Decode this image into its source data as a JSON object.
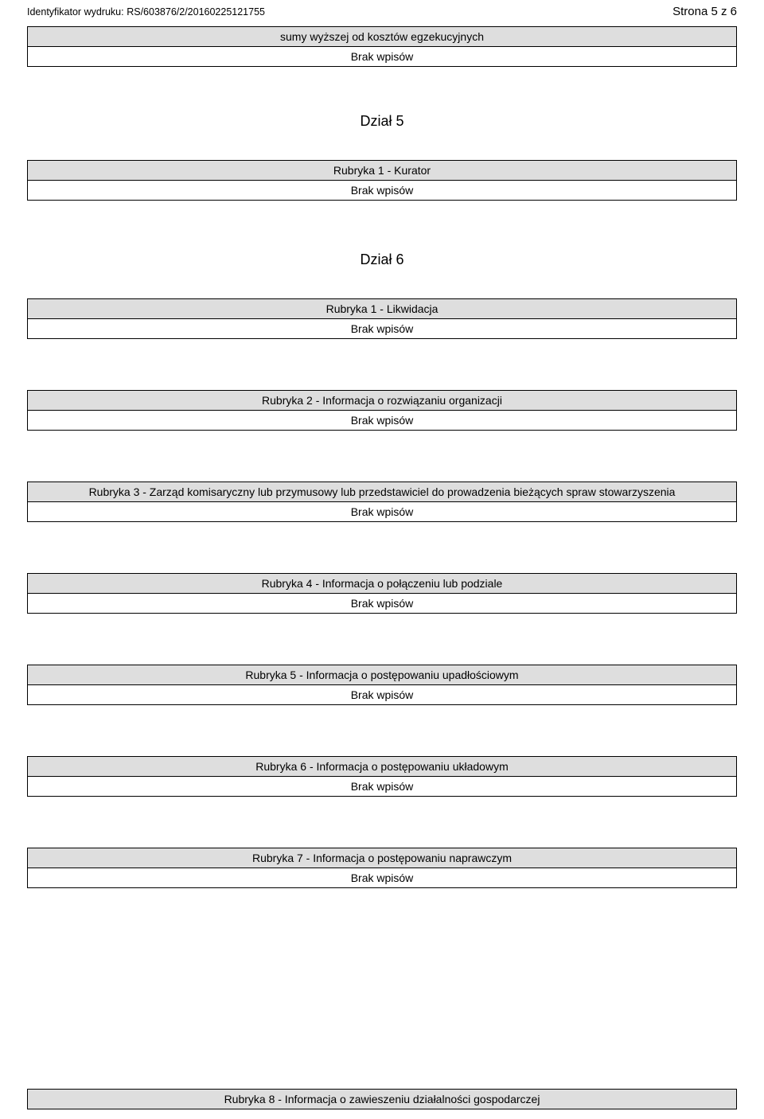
{
  "header": {
    "id_label": "Identyfikator wydruku:",
    "id_value": "RS/603876/2/20160225121755",
    "page_label": "Strona 5 z 6"
  },
  "colors": {
    "shaded_bg": "#dedede",
    "border": "#000000",
    "page_bg": "#ffffff",
    "text": "#000000"
  },
  "fonts": {
    "body_family": "Arial",
    "row_fontsize_pt": 10.5,
    "header_fontsize_pt": 9.5,
    "section_title_fontsize_pt": 13.5
  },
  "top_block": {
    "row1": "sumy wyższej od kosztów egzekucyjnych",
    "row2": "Brak wpisów"
  },
  "dzial5": {
    "title": "Dział 5",
    "r1": {
      "title": "Rubryka 1 - Kurator",
      "empty": "Brak wpisów"
    }
  },
  "dzial6": {
    "title": "Dział 6",
    "r1": {
      "title": "Rubryka 1 - Likwidacja",
      "empty": "Brak wpisów"
    },
    "r2": {
      "title": "Rubryka 2 - Informacja o rozwiązaniu organizacji",
      "empty": "Brak wpisów"
    },
    "r3": {
      "title": "Rubryka 3 - Zarząd komisaryczny lub przymusowy lub przedstawiciel do prowadzenia bieżących spraw stowarzyszenia",
      "empty": "Brak wpisów"
    },
    "r4": {
      "title": "Rubryka 4 - Informacja o połączeniu lub podziale",
      "empty": "Brak wpisów"
    },
    "r5": {
      "title": "Rubryka 5 - Informacja o postępowaniu upadłościowym",
      "empty": "Brak wpisów"
    },
    "r6": {
      "title": "Rubryka 6 - Informacja o postępowaniu układowym",
      "empty": "Brak wpisów"
    },
    "r7": {
      "title": "Rubryka 7 - Informacja o postępowaniu naprawczym",
      "empty": "Brak wpisów"
    },
    "r8": {
      "title": "Rubryka 8 - Informacja o zawieszeniu działalności gospodarczej"
    }
  }
}
